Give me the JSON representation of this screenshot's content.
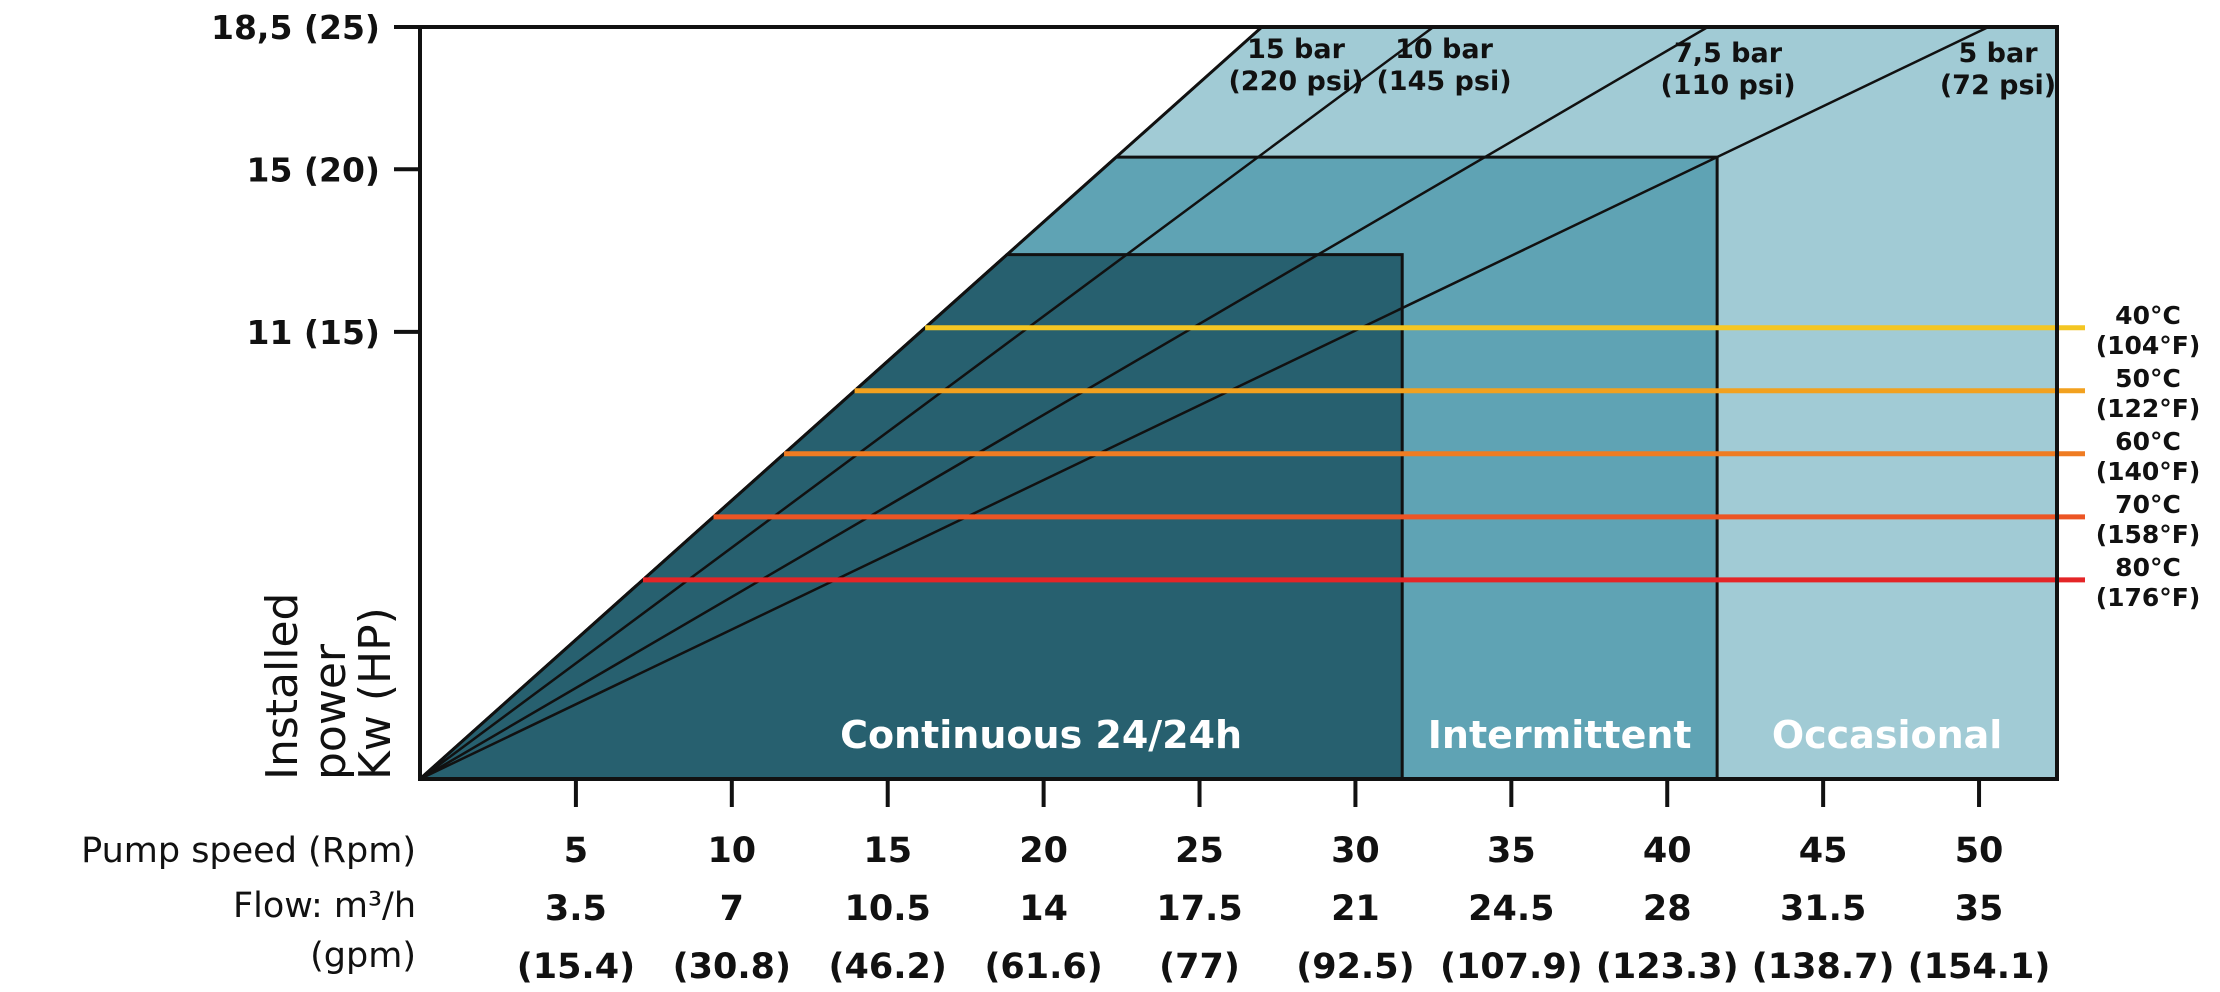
{
  "chart_data": {
    "type": "area",
    "title": "",
    "ylabel_lines": [
      "Installed",
      "power",
      "Kw (HP)"
    ],
    "y_ticks": [
      {
        "value": 18.5,
        "label": "18,5 (25)"
      },
      {
        "value": 15,
        "label": "15 (20)"
      },
      {
        "value": 11,
        "label": "11 (15)"
      }
    ],
    "ylim": [
      0,
      18.5
    ],
    "xlim": [
      0,
      52.5
    ],
    "x_rows": {
      "speed_label": "Pump speed (Rpm)",
      "flow_label": "Flow: m³/h",
      "gpm_label": "(gpm)",
      "speed": [
        "5",
        "10",
        "15",
        "20",
        "25",
        "30",
        "35",
        "40",
        "45",
        "50"
      ],
      "flow": [
        "3.5",
        "7",
        "10.5",
        "14",
        "17.5",
        "21",
        "24.5",
        "28",
        "31.5",
        "35"
      ],
      "gpm": [
        "(15.4)",
        "(30.8)",
        "(46.2)",
        "(61.6)",
        "(77)",
        "(92.5)",
        "(107.9)",
        "(123.3)",
        "(138.7)",
        "(154.1)"
      ]
    },
    "pressure_lines": [
      {
        "line1": "15 bar",
        "line2": "(220 psi)",
        "speed_at_max_power": 27
      },
      {
        "line1": "10 bar",
        "line2": "(145 psi)",
        "speed_at_max_power": 32.5
      },
      {
        "line1": "7,5 bar",
        "line2": "(110 psi)",
        "speed_at_max_power": 41.3
      },
      {
        "line1": "5 bar",
        "line2": "(72 psi)",
        "speed_at_max_power": 50.3
      }
    ],
    "zones": [
      {
        "label": "Continuous 24/24h",
        "max_speed": 31.5,
        "max_power": 12.9,
        "color": "#27606f"
      },
      {
        "label": "Intermittent",
        "max_speed": 41.6,
        "max_power": 15.3,
        "color": "#5fa3b4"
      },
      {
        "label": "Occasional",
        "max_speed": 52.5,
        "max_power": 18.5,
        "color": "#a1cbd5"
      }
    ],
    "temperature_limits": [
      {
        "line1": "40°C",
        "line2": "(104°F)",
        "power": 11.1,
        "color": "#f4c622"
      },
      {
        "line1": "50°C",
        "line2": "(122°F)",
        "power": 9.55,
        "color": "#f2a11f"
      },
      {
        "line1": "60°C",
        "line2": "(140°F)",
        "power": 8.0,
        "color": "#ef7c22"
      },
      {
        "line1": "70°C",
        "line2": "(158°F)",
        "power": 6.45,
        "color": "#ec5524"
      },
      {
        "line1": "80°C",
        "line2": "(176°F)",
        "power": 4.9,
        "color": "#e42527"
      }
    ],
    "grid": false,
    "legend": "none"
  }
}
